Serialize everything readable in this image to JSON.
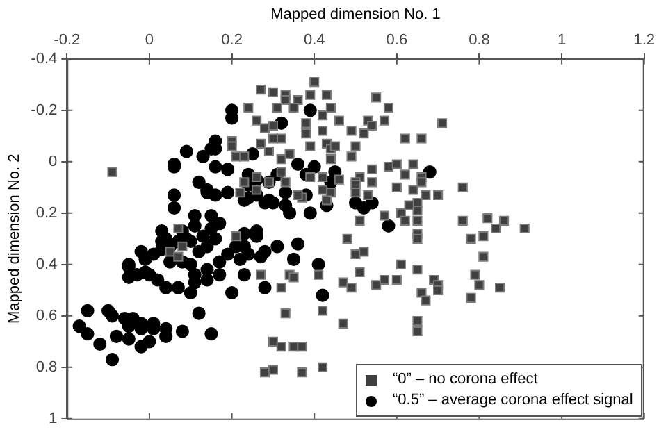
{
  "chart_data": {
    "type": "scatter",
    "xlabel": "Mapped dimension No. 1",
    "ylabel": "Mapped dimension No. 2",
    "xlim": [
      -0.2,
      1.2
    ],
    "xticks": [
      -0.2,
      0,
      0.2,
      0.4,
      0.6,
      0.8,
      1,
      1.2
    ],
    "ylim": [
      1,
      -0.4
    ],
    "yticks": [
      -0.4,
      -0.2,
      0,
      0.2,
      0.4,
      0.6,
      0.8,
      1
    ],
    "grid": false,
    "legend": "bottom right",
    "series": [
      {
        "name": "“0” – no corona effect",
        "color": "#404040",
        "marker": "square",
        "x": [
          0.4,
          0.27,
          0.3,
          0.33,
          0.33,
          0.36,
          0.39,
          0.43,
          0.31,
          0.35,
          0.44,
          0.24,
          0.42,
          0.55,
          0.58,
          0.57,
          0.53,
          0.54,
          0.71,
          0.46,
          0.38,
          0.26,
          0.28,
          0.3,
          0.49,
          0.52,
          0.42,
          0.38,
          0.62,
          0.66,
          0.2,
          0.27,
          0.32,
          0.3,
          0.2,
          0.43,
          0.39,
          0.29,
          0.44,
          0.45,
          0.5,
          0.21,
          0.23,
          0.32,
          0.34,
          0.49,
          0.44,
          0.32,
          0.26,
          0.29,
          0.33,
          0.42,
          0.39,
          0.46,
          0.51,
          0.5,
          0.54,
          0.62,
          0.58,
          0.6,
          0.64,
          0.54,
          0.5,
          0.5,
          0.53,
          0.44,
          0.42,
          0.43,
          0.37,
          0.36,
          0.22,
          0.23,
          0.26,
          0.6,
          0.64,
          0.66,
          0.66,
          0.7,
          0.67,
          0.65,
          0.65,
          0.63,
          0.57,
          0.61,
          0.62,
          0.65,
          0.76,
          0.76,
          0.82,
          0.86,
          0.84,
          0.91,
          0.51,
          -0.09,
          0.07,
          0.21,
          0.08,
          0.05,
          0.07,
          0.27,
          0.32,
          0.34,
          0.35,
          0.41,
          0.33,
          0.3,
          0.32,
          0.35,
          0.37,
          0.28,
          0.3,
          0.37,
          0.42,
          0.42,
          0.47,
          0.47,
          0.49,
          0.48,
          0.5,
          0.52,
          0.51,
          0.55,
          0.57,
          0.6,
          0.61,
          0.65,
          0.65,
          0.65,
          0.65,
          0.65,
          0.66,
          0.67,
          0.69,
          0.7,
          0.7,
          0.78,
          0.78,
          0.81,
          0.81,
          0.79,
          0.8,
          0.85
        ],
        "values": [
          -0.31,
          -0.28,
          -0.27,
          -0.26,
          -0.24,
          -0.24,
          -0.26,
          -0.26,
          -0.21,
          -0.21,
          -0.21,
          -0.21,
          -0.18,
          -0.25,
          -0.21,
          -0.16,
          -0.16,
          -0.14,
          -0.15,
          -0.16,
          -0.15,
          -0.16,
          -0.13,
          -0.14,
          -0.12,
          -0.11,
          -0.12,
          -0.11,
          -0.09,
          -0.09,
          -0.08,
          -0.07,
          -0.09,
          -0.09,
          -0.06,
          -0.07,
          -0.06,
          -0.04,
          -0.05,
          -0.06,
          -0.06,
          -0.02,
          -0.02,
          -0.01,
          -0.03,
          -0.02,
          -0.01,
          0.04,
          0.06,
          0.08,
          0.08,
          0.06,
          0.06,
          0.07,
          0.06,
          0.08,
          0.03,
          0.05,
          0.02,
          0.01,
          0.01,
          0.08,
          0.09,
          0.12,
          0.13,
          0.12,
          0.11,
          0.15,
          0.14,
          0.13,
          0.12,
          0.08,
          0.11,
          0.1,
          0.11,
          0.06,
          0.08,
          0.13,
          0.13,
          0.16,
          0.19,
          0.17,
          0.21,
          0.2,
          0.23,
          0.23,
          0.1,
          0.23,
          0.22,
          0.23,
          0.26,
          0.26,
          0.23,
          0.04,
          0.26,
          0.29,
          0.33,
          0.35,
          0.37,
          0.44,
          0.49,
          0.44,
          0.45,
          0.44,
          0.59,
          0.7,
          0.72,
          0.72,
          0.72,
          0.82,
          0.81,
          0.82,
          0.8,
          0.58,
          0.63,
          0.47,
          0.49,
          0.3,
          0.36,
          0.35,
          0.43,
          0.48,
          0.46,
          0.46,
          0.4,
          0.42,
          0.28,
          0.3,
          0.62,
          0.66,
          0.51,
          0.54,
          0.46,
          0.48,
          0.5,
          0.53,
          0.3,
          0.29,
          0.37,
          0.44,
          0.48,
          0.49
        ]
      },
      {
        "name": "“0.5” – average corona effect signal",
        "color": "#000000",
        "marker": "circle",
        "x": [
          0.2,
          0.2,
          0.32,
          0.16,
          0.16,
          0.15,
          0.25,
          0.39,
          0.09,
          0.13,
          0.06,
          0.06,
          0.16,
          0.19,
          0.36,
          0.4,
          0.31,
          0.38,
          0.45,
          0.68,
          0.16,
          0.14,
          0.12,
          0.14,
          0.14,
          0.19,
          0.24,
          0.26,
          0.29,
          0.24,
          0.26,
          0.24,
          0.23,
          0.28,
          0.3,
          0.29,
          0.33,
          0.38,
          0.33,
          0.34,
          0.39,
          0.43,
          0.44,
          0.5,
          0.54,
          0.52,
          0.06,
          0.06,
          0.11,
          0.11,
          0.15,
          0.17,
          0.03,
          0.08,
          0.23,
          0.26,
          0.58,
          0.15,
          0.04,
          0.07,
          0.09,
          0.1,
          0.13,
          0.03,
          0.05,
          0.03,
          0.01,
          0.05,
          0.08,
          0.1,
          0.12,
          0.14,
          0.16,
          0.21,
          0.19,
          0.22,
          0.23,
          0.24,
          0.27,
          0.26,
          0.28,
          0.31,
          0.36,
          0.35,
          -0.02,
          -0.01,
          -0.05,
          -0.05,
          -0.03,
          -0.01,
          0.0,
          0.02,
          0.04,
          0.07,
          0.11,
          0.1,
          0.11,
          0.14,
          0.17,
          0.14,
          0.17,
          0.2,
          0.23,
          0.28,
          0.41,
          0.42,
          -0.05,
          -0.15,
          -0.1,
          -0.09,
          -0.06,
          -0.04,
          -0.02,
          -0.05,
          -0.02,
          0.01,
          0.01,
          0.04,
          0.04,
          0.0,
          -0.02,
          -0.05,
          -0.08,
          -0.09,
          -0.12,
          -0.15,
          -0.17,
          0.08,
          0.12,
          0.15
        ],
        "values": [
          -0.2,
          -0.17,
          -0.15,
          -0.08,
          -0.05,
          -0.05,
          -0.03,
          -0.2,
          -0.04,
          -0.02,
          0.02,
          0.01,
          0.02,
          0.03,
          0.01,
          0.02,
          0.05,
          0.05,
          0.04,
          0.04,
          0.13,
          0.11,
          0.08,
          0.11,
          0.12,
          0.12,
          0.05,
          0.07,
          0.08,
          0.09,
          0.13,
          0.14,
          0.15,
          0.16,
          0.16,
          0.15,
          0.12,
          0.13,
          0.17,
          0.2,
          0.2,
          0.17,
          0.08,
          0.16,
          0.16,
          0.18,
          0.13,
          0.18,
          0.21,
          0.25,
          0.21,
          0.24,
          0.27,
          0.27,
          0.28,
          0.27,
          0.25,
          0.26,
          0.3,
          0.31,
          0.3,
          0.31,
          0.29,
          0.31,
          0.33,
          0.34,
          0.36,
          0.39,
          0.39,
          0.4,
          0.35,
          0.33,
          0.3,
          0.33,
          0.36,
          0.38,
          0.33,
          0.36,
          0.37,
          0.29,
          0.35,
          0.33,
          0.32,
          0.38,
          0.35,
          0.38,
          0.41,
          0.45,
          0.44,
          0.43,
          0.44,
          0.46,
          0.49,
          0.49,
          0.47,
          0.51,
          0.44,
          0.42,
          0.44,
          0.46,
          0.39,
          0.51,
          0.44,
          0.49,
          0.4,
          0.52,
          0.4,
          0.58,
          0.58,
          0.6,
          0.61,
          0.61,
          0.63,
          0.64,
          0.65,
          0.63,
          0.65,
          0.65,
          0.68,
          0.7,
          0.72,
          0.69,
          0.68,
          0.77,
          0.71,
          0.67,
          0.64,
          0.66,
          0.59,
          0.67
        ]
      }
    ]
  }
}
